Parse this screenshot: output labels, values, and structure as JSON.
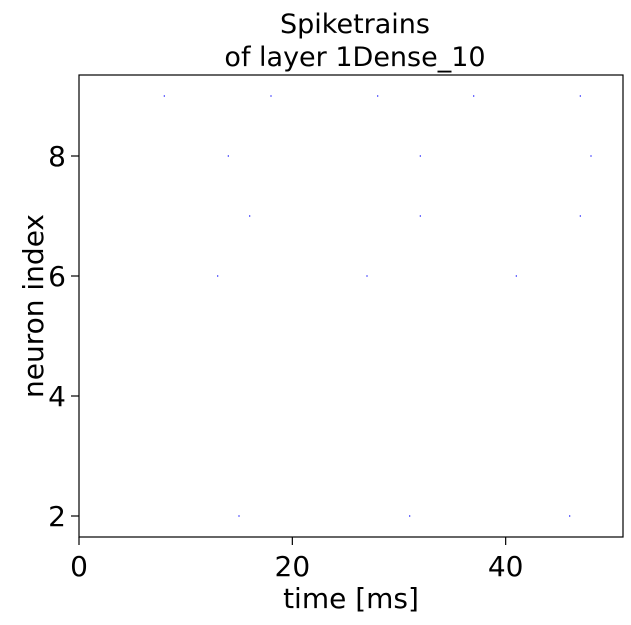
{
  "chart_data": {
    "type": "scatter",
    "title_lines": [
      "Spiketrains",
      "of layer 1Dense_10"
    ],
    "xlabel": "time [ms]",
    "ylabel": "neuron index",
    "xlim": [
      0,
      51
    ],
    "ylim": [
      1.65,
      9.35
    ],
    "xticks": [
      0,
      20,
      40
    ],
    "yticks": [
      2,
      4,
      6,
      8
    ],
    "grid": false,
    "marker_color": "#0000ff",
    "spikes": [
      {
        "x": 8,
        "y": 9
      },
      {
        "x": 18,
        "y": 9
      },
      {
        "x": 28,
        "y": 9
      },
      {
        "x": 37,
        "y": 9
      },
      {
        "x": 47,
        "y": 9
      },
      {
        "x": 14,
        "y": 8
      },
      {
        "x": 32,
        "y": 8
      },
      {
        "x": 48,
        "y": 8
      },
      {
        "x": 16,
        "y": 7
      },
      {
        "x": 32,
        "y": 7
      },
      {
        "x": 47,
        "y": 7
      },
      {
        "x": 13,
        "y": 6
      },
      {
        "x": 27,
        "y": 6
      },
      {
        "x": 41,
        "y": 6
      },
      {
        "x": 15,
        "y": 2
      },
      {
        "x": 31,
        "y": 2
      },
      {
        "x": 46,
        "y": 2
      }
    ]
  }
}
